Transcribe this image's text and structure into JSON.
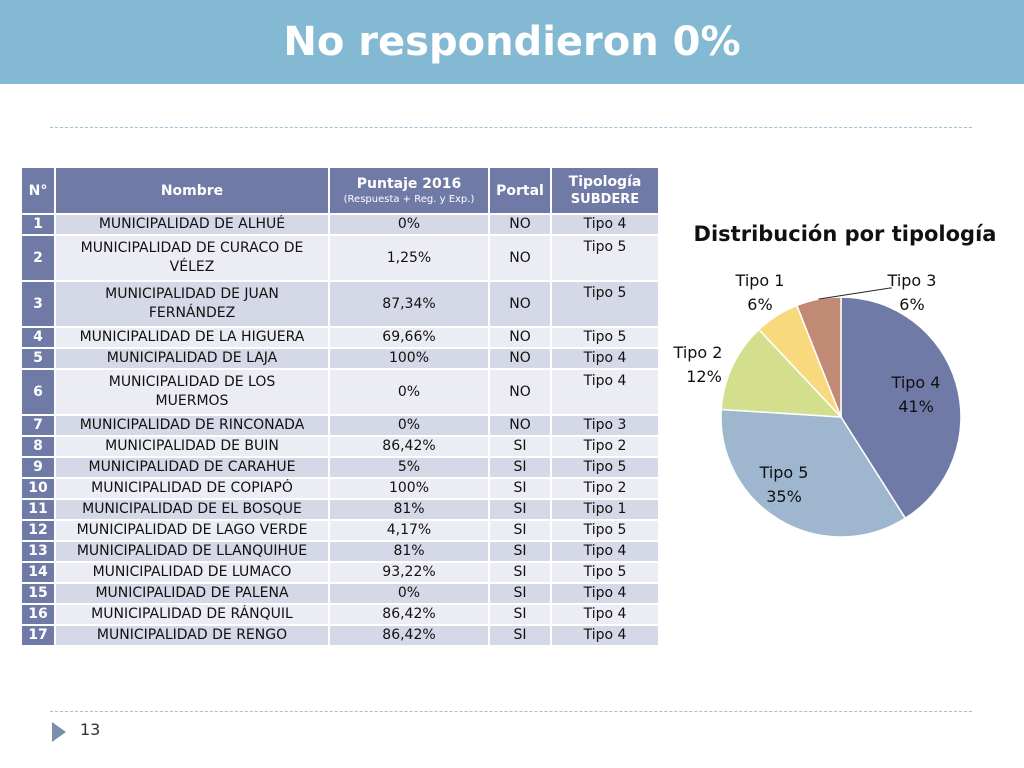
{
  "title": "No respondieron 0%",
  "page_number": "13",
  "table": {
    "headers": {
      "num": "N°",
      "nombre": "Nombre",
      "puntaje": "Puntaje 2016",
      "puntaje_sub": "(Respuesta + Reg. y Exp.)",
      "portal": "Portal",
      "tipologia": "Tipología",
      "tipologia_sub": "SUBDERE"
    },
    "rows": [
      {
        "n": "1",
        "nombre": "MUNICIPALIDAD DE ALHUÉ",
        "nombre2": "",
        "puntaje": "0%",
        "portal": "NO",
        "tipo": "Tipo 4"
      },
      {
        "n": "2",
        "nombre": "MUNICIPALIDAD DE CURACO DE",
        "nombre2": "VÉLEZ",
        "puntaje": "1,25%",
        "portal": "NO",
        "tipo": "Tipo 5"
      },
      {
        "n": "3",
        "nombre": "MUNICIPALIDAD DE JUAN",
        "nombre2": "FERNÁNDEZ",
        "puntaje": "87,34%",
        "portal": "NO",
        "tipo": "Tipo 5"
      },
      {
        "n": "4",
        "nombre": "MUNICIPALIDAD DE LA HIGUERA",
        "nombre2": "",
        "puntaje": "69,66%",
        "portal": "NO",
        "tipo": "Tipo 5"
      },
      {
        "n": "5",
        "nombre": "MUNICIPALIDAD DE LAJA",
        "nombre2": "",
        "puntaje": "100%",
        "portal": "NO",
        "tipo": "Tipo 4"
      },
      {
        "n": "6",
        "nombre": "MUNICIPALIDAD DE LOS",
        "nombre2": "MUERMOS",
        "puntaje": "0%",
        "portal": "NO",
        "tipo": "Tipo 4"
      },
      {
        "n": "7",
        "nombre": "MUNICIPALIDAD DE RINCONADA",
        "nombre2": "",
        "puntaje": "0%",
        "portal": "NO",
        "tipo": "Tipo 3"
      },
      {
        "n": "8",
        "nombre": "MUNICIPALIDAD DE BUIN",
        "nombre2": "",
        "puntaje": "86,42%",
        "portal": "SI",
        "tipo": "Tipo 2"
      },
      {
        "n": "9",
        "nombre": "MUNICIPALIDAD DE CARAHUE",
        "nombre2": "",
        "puntaje": "5%",
        "portal": "SI",
        "tipo": "Tipo 5"
      },
      {
        "n": "10",
        "nombre": "MUNICIPALIDAD DE COPIAPÓ",
        "nombre2": "",
        "puntaje": "100%",
        "portal": "SI",
        "tipo": "Tipo 2"
      },
      {
        "n": "11",
        "nombre": "MUNICIPALIDAD DE EL BOSQUE",
        "nombre2": "",
        "puntaje": "81%",
        "portal": "SI",
        "tipo": "Tipo 1"
      },
      {
        "n": "12",
        "nombre": "MUNICIPALIDAD DE LAGO VERDE",
        "nombre2": "",
        "puntaje": "4,17%",
        "portal": "SI",
        "tipo": "Tipo 5"
      },
      {
        "n": "13",
        "nombre": "MUNICIPALIDAD DE LLANQUIHUE",
        "nombre2": "",
        "puntaje": "81%",
        "portal": "SI",
        "tipo": "Tipo 4"
      },
      {
        "n": "14",
        "nombre": "MUNICIPALIDAD DE LUMACO",
        "nombre2": "",
        "puntaje": "93,22%",
        "portal": "SI",
        "tipo": "Tipo 5"
      },
      {
        "n": "15",
        "nombre": "MUNICIPALIDAD DE PALENA",
        "nombre2": "",
        "puntaje": "0%",
        "portal": "SI",
        "tipo": "Tipo 4"
      },
      {
        "n": "16",
        "nombre": "MUNICIPALIDAD DE RÁNQUIL",
        "nombre2": "",
        "puntaje": "86,42%",
        "portal": "SI",
        "tipo": "Tipo 4"
      },
      {
        "n": "17",
        "nombre": "MUNICIPALIDAD DE RENGO",
        "nombre2": "",
        "puntaje": "86,42%",
        "portal": "SI",
        "tipo": "Tipo 4"
      }
    ]
  },
  "chart_data": {
    "type": "pie",
    "title": "Distribución por tipología",
    "slices": [
      {
        "name": "Tipo 4",
        "label": "41%",
        "value": 41,
        "color": "#6f7aa6"
      },
      {
        "name": "Tipo 5",
        "label": "35%",
        "value": 35,
        "color": "#9fb6cf"
      },
      {
        "name": "Tipo 2",
        "label": "12%",
        "value": 12,
        "color": "#d4df8e"
      },
      {
        "name": "Tipo 1",
        "label": "6%",
        "value": 6,
        "color": "#f8d97e"
      },
      {
        "name": "Tipo 3",
        "label": "6%",
        "value": 6,
        "color": "#c08a74"
      }
    ]
  }
}
